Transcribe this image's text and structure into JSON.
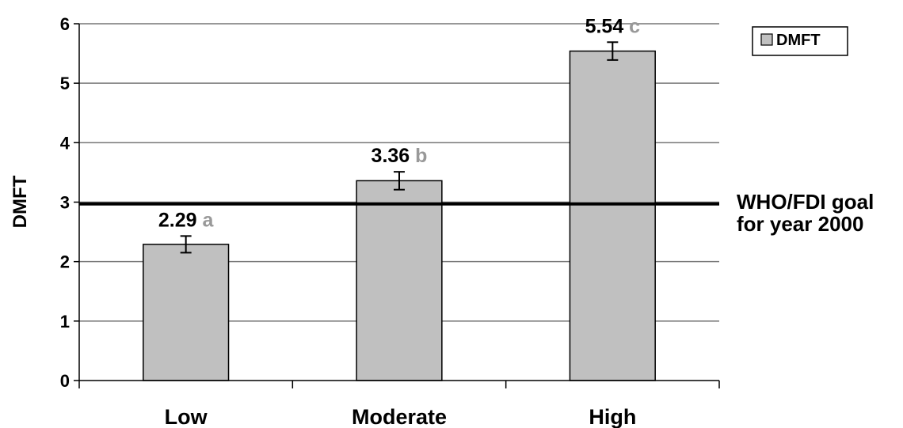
{
  "chart_data": {
    "type": "bar",
    "categories": [
      "Low",
      "Moderate",
      "High"
    ],
    "series": [
      {
        "name": "DMFT",
        "values": [
          2.29,
          3.36,
          5.54
        ],
        "error": [
          0.14,
          0.15,
          0.15
        ],
        "color": "#c0c0c0"
      }
    ],
    "data_labels": [
      "2.29",
      "3.36",
      "5.54"
    ],
    "letter_labels": [
      "a",
      "b",
      "c"
    ],
    "letter_color": "#999999",
    "ylabel": "DMFT",
    "ylim": [
      0,
      6
    ],
    "yticks": [
      "0",
      "1",
      "2",
      "3",
      "4",
      "5",
      "6"
    ],
    "grid": true,
    "legend": {
      "placement": "top-right",
      "entries": [
        "DMFT"
      ]
    },
    "reference_line": {
      "value": 2.97,
      "label_lines": [
        "WHO/FDI goal",
        "for year 2000"
      ]
    }
  }
}
